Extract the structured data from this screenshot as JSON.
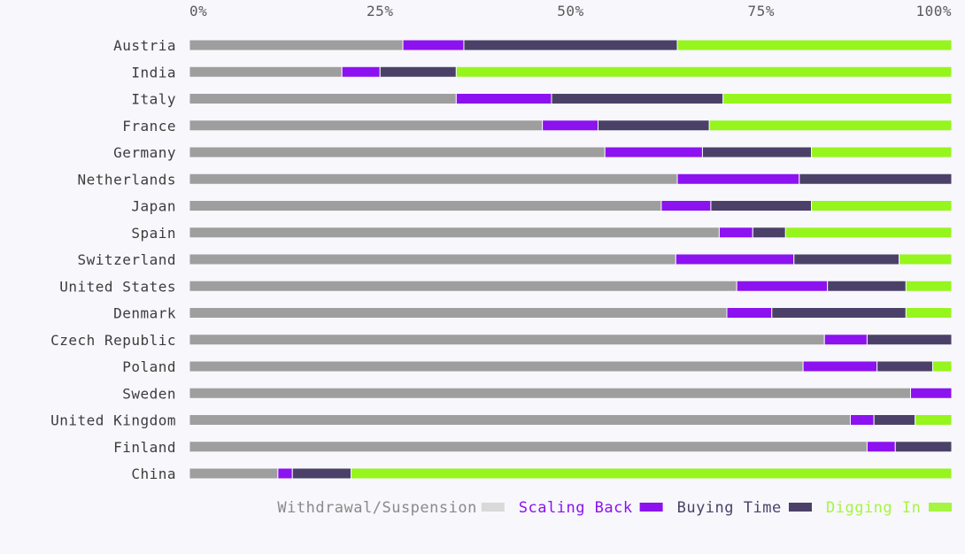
{
  "chart_data": {
    "type": "bar",
    "orientation": "horizontal",
    "stacked": true,
    "normalized": true,
    "xlim": [
      0,
      1
    ],
    "x_tick_labels": [
      "0%",
      "25%",
      "50%",
      "75%",
      "100%"
    ],
    "grid": false,
    "legend_position": "bottom-right",
    "categories": [
      "Austria",
      "India",
      "Italy",
      "France",
      "Germany",
      "Netherlands",
      "Japan",
      "Spain",
      "Switzerland",
      "United States",
      "Denmark",
      "Czech Republic",
      "Poland",
      "Sweden",
      "United Kingdom",
      "Finland",
      "China"
    ],
    "series": [
      {
        "name": "Withdrawal/Suspension",
        "color": "#9e9e9e",
        "legend_color": "#d9d9d9",
        "label_color": "#8a8a8a",
        "values": [
          0.28,
          0.2,
          0.35,
          0.463,
          0.545,
          0.64,
          0.619,
          0.695,
          0.638,
          0.718,
          0.705,
          0.833,
          0.805,
          0.946,
          0.867,
          0.889,
          0.116
        ]
      },
      {
        "name": "Scaling Back",
        "color": "#8c12f0",
        "legend_color": "#8c12f0",
        "label_color": "#8c12f0",
        "values": [
          0.08,
          0.05,
          0.125,
          0.073,
          0.128,
          0.16,
          0.065,
          0.044,
          0.155,
          0.119,
          0.059,
          0.056,
          0.097,
          0.054,
          0.031,
          0.037,
          0.019
        ]
      },
      {
        "name": "Buying Time",
        "color": "#4b4168",
        "legend_color": "#4b4168",
        "label_color": "#4b4168",
        "values": [
          0.28,
          0.1,
          0.225,
          0.146,
          0.143,
          0.2,
          0.132,
          0.043,
          0.138,
          0.103,
          0.176,
          0.111,
          0.073,
          0.0,
          0.054,
          0.074,
          0.077
        ]
      },
      {
        "name": "Digging In",
        "color": "#96f51c",
        "legend_color": "#a6f542",
        "label_color": "#a6f542",
        "values": [
          0.36,
          0.65,
          0.3,
          0.318,
          0.184,
          0.0,
          0.184,
          0.218,
          0.069,
          0.06,
          0.06,
          0.0,
          0.025,
          0.0,
          0.048,
          0.0,
          0.788
        ]
      }
    ]
  }
}
